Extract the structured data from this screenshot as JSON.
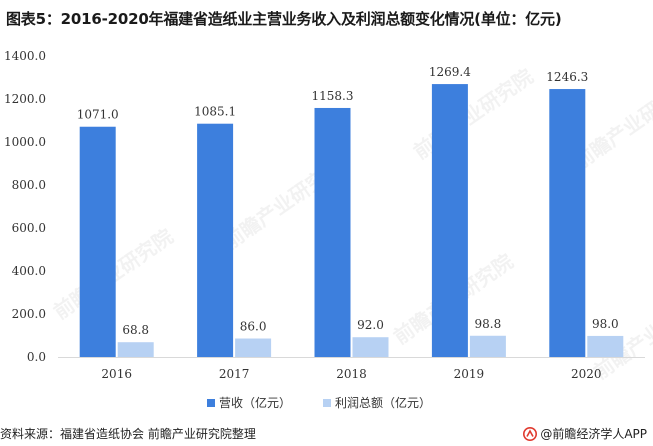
{
  "title": "图表5：2016-2020年福建省造纸业主营业务收入及利润总额变化情况(单位：亿元)",
  "source": "资料来源：福建省造纸协会 前瞻产业研究院整理",
  "brand": "@前瞻经济学人APP",
  "watermark": "前瞻产业研究院",
  "colors": {
    "revenue": "#3d7fdd",
    "profit": "#b7d1f3"
  },
  "chart_data": {
    "type": "bar",
    "categories": [
      "2016",
      "2017",
      "2018",
      "2019",
      "2020"
    ],
    "series": [
      {
        "name": "营收（亿元）",
        "values": [
          1071.0,
          1085.1,
          1158.3,
          1269.4,
          1246.3
        ],
        "labels": [
          "1071.0",
          "1085.1",
          "1158.3",
          "1269.4",
          "1246.3"
        ]
      },
      {
        "name": "利润总额（亿元）",
        "values": [
          68.8,
          86.0,
          92.0,
          98.8,
          98.0
        ],
        "labels": [
          "68.8",
          "86.0",
          "92.0",
          "98.8",
          "98.0"
        ]
      }
    ],
    "yticks": [
      "0.0",
      "200.0",
      "400.0",
      "600.0",
      "800.0",
      "1000.0",
      "1200.0",
      "1400.0"
    ],
    "ylim": [
      0,
      1400
    ],
    "grid": false,
    "legend": "bottom-center"
  }
}
